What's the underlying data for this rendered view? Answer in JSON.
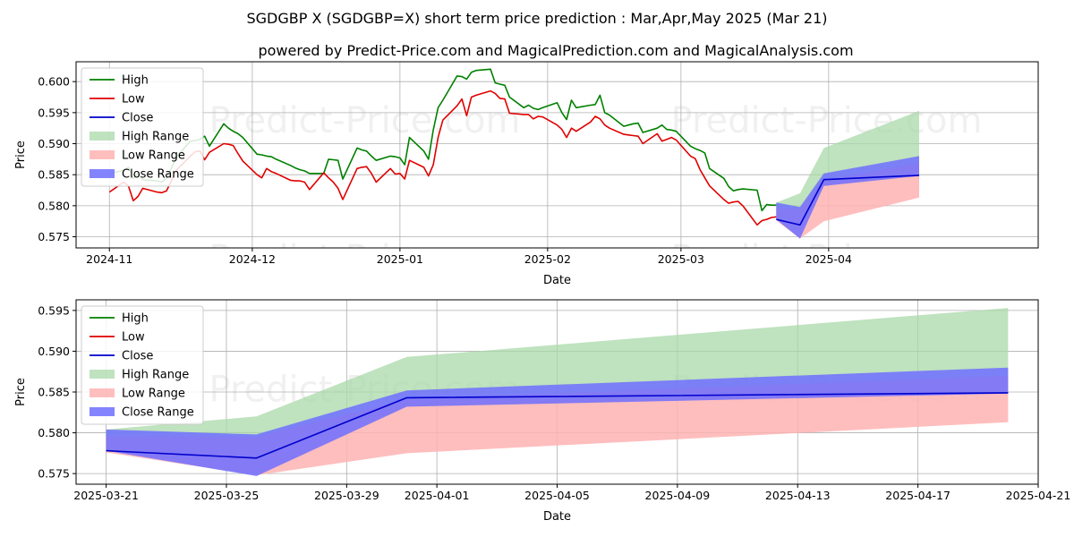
{
  "title": "SGDGBP X (SGDGBP=X) short term price prediction : Mar,Apr,May 2025 (Mar 21)",
  "subtitle": "powered by Predict-Price.com and MagicalPrediction.com and MagicalAnalysis.com",
  "watermark": "Predict-Price.com",
  "colors": {
    "high": "#008000",
    "low": "#e00000",
    "close": "#0000cc",
    "high_range": "#a9d8a9",
    "low_range": "#ffb3b3",
    "close_range": "#6f6fff",
    "grid": "#b0b0b0"
  },
  "chart_data": [
    {
      "type": "line",
      "xlabel": "Date",
      "ylabel": "Price",
      "x_type": "date",
      "xlim": [
        "2024-10-25",
        "2025-05-15"
      ],
      "ylim": [
        0.5732,
        0.6032
      ],
      "grid": true,
      "legend": "upper left",
      "xticks": [
        "2024-11-01",
        "2024-12-01",
        "2025-01-01",
        "2025-02-01",
        "2025-03-01",
        "2025-04-01"
      ],
      "xticklabels": [
        "2024-11",
        "2024-12",
        "2025-01",
        "2025-02",
        "2025-03",
        "2025-04"
      ],
      "yticks": [
        0.575,
        0.58,
        0.585,
        0.59,
        0.595,
        0.6
      ],
      "yticklabels": [
        "0.575",
        "0.580",
        "0.585",
        "0.590",
        "0.595",
        "0.600"
      ],
      "legend_entries": [
        "High",
        "Low",
        "Close",
        "High Range",
        "Low Range",
        "Close Range"
      ],
      "series": [
        {
          "name": "High",
          "x": [
            "2024-11-01",
            "2024-11-04",
            "2024-11-05",
            "2024-11-06",
            "2024-11-07",
            "2024-11-08",
            "2024-11-11",
            "2024-11-12",
            "2024-11-13",
            "2024-11-14",
            "2024-11-15",
            "2024-11-18",
            "2024-11-19",
            "2024-11-20",
            "2024-11-21",
            "2024-11-22",
            "2024-11-25",
            "2024-11-26",
            "2024-11-27",
            "2024-11-28",
            "2024-11-29",
            "2024-12-02",
            "2024-12-03",
            "2024-12-04",
            "2024-12-05",
            "2024-12-06",
            "2024-12-09",
            "2024-12-10",
            "2024-12-11",
            "2024-12-12",
            "2024-12-13",
            "2024-12-16",
            "2024-12-17",
            "2024-12-18",
            "2024-12-19",
            "2024-12-20",
            "2024-12-23",
            "2024-12-24",
            "2024-12-25",
            "2024-12-26",
            "2024-12-27",
            "2024-12-30",
            "2024-12-31",
            "2025-01-01",
            "2025-01-02",
            "2025-01-03",
            "2025-01-06",
            "2025-01-07",
            "2025-01-08",
            "2025-01-09",
            "2025-01-10",
            "2025-01-13",
            "2025-01-14",
            "2025-01-15",
            "2025-01-16",
            "2025-01-17",
            "2025-01-20",
            "2025-01-21",
            "2025-01-22",
            "2025-01-23",
            "2025-01-24",
            "2025-01-27",
            "2025-01-28",
            "2025-01-29",
            "2025-01-30",
            "2025-01-31",
            "2025-02-03",
            "2025-02-04",
            "2025-02-05",
            "2025-02-06",
            "2025-02-07",
            "2025-02-10",
            "2025-02-11",
            "2025-02-12",
            "2025-02-13",
            "2025-02-14",
            "2025-02-17",
            "2025-02-18",
            "2025-02-19",
            "2025-02-20",
            "2025-02-21",
            "2025-02-24",
            "2025-02-25",
            "2025-02-26",
            "2025-02-27",
            "2025-02-28",
            "2025-03-03",
            "2025-03-04",
            "2025-03-05",
            "2025-03-06",
            "2025-03-07",
            "2025-03-10",
            "2025-03-11",
            "2025-03-12",
            "2025-03-13",
            "2025-03-14",
            "2025-03-17",
            "2025-03-18",
            "2025-03-19",
            "2025-03-20",
            "2025-03-21"
          ],
          "values": [
            0.5852,
            0.5857,
            0.5862,
            0.5844,
            0.5852,
            0.5842,
            0.584,
            0.5838,
            0.5845,
            0.586,
            0.5878,
            0.5904,
            0.5905,
            0.5907,
            0.5912,
            0.5896,
            0.5932,
            0.5925,
            0.592,
            0.5916,
            0.591,
            0.5883,
            0.5882,
            0.588,
            0.5879,
            0.5875,
            0.5865,
            0.5861,
            0.5858,
            0.5856,
            0.5852,
            0.5852,
            0.5875,
            0.5874,
            0.5873,
            0.5843,
            0.5893,
            0.589,
            0.5888,
            0.588,
            0.5873,
            0.588,
            0.5879,
            0.5877,
            0.5866,
            0.591,
            0.5888,
            0.5875,
            0.5922,
            0.5958,
            0.597,
            0.6009,
            0.6008,
            0.6004,
            0.6015,
            0.6018,
            0.602,
            0.5998,
            0.5996,
            0.5994,
            0.5975,
            0.5958,
            0.5962,
            0.5957,
            0.5955,
            0.5958,
            0.5966,
            0.595,
            0.5939,
            0.597,
            0.5958,
            0.5962,
            0.5963,
            0.5978,
            0.595,
            0.5946,
            0.5928,
            0.593,
            0.5932,
            0.5933,
            0.5918,
            0.5925,
            0.593,
            0.5923,
            0.5922,
            0.592,
            0.5896,
            0.5892,
            0.5889,
            0.5885,
            0.586,
            0.5844,
            0.5831,
            0.5824,
            0.5826,
            0.5827,
            0.5825,
            0.5792,
            0.5802,
            0.5801,
            0.5801
          ]
        },
        {
          "name": "Low",
          "x": [
            "2024-11-01",
            "2024-11-04",
            "2024-11-05",
            "2024-11-06",
            "2024-11-07",
            "2024-11-08",
            "2024-11-11",
            "2024-11-12",
            "2024-11-13",
            "2024-11-14",
            "2024-11-15",
            "2024-11-18",
            "2024-11-19",
            "2024-11-20",
            "2024-11-21",
            "2024-11-22",
            "2024-11-25",
            "2024-11-26",
            "2024-11-27",
            "2024-11-28",
            "2024-11-29",
            "2024-12-02",
            "2024-12-03",
            "2024-12-04",
            "2024-12-05",
            "2024-12-06",
            "2024-12-09",
            "2024-12-10",
            "2024-12-11",
            "2024-12-12",
            "2024-12-13",
            "2024-12-16",
            "2024-12-17",
            "2024-12-18",
            "2024-12-19",
            "2024-12-20",
            "2024-12-23",
            "2024-12-24",
            "2024-12-25",
            "2024-12-26",
            "2024-12-27",
            "2024-12-30",
            "2024-12-31",
            "2025-01-01",
            "2025-01-02",
            "2025-01-03",
            "2025-01-06",
            "2025-01-07",
            "2025-01-08",
            "2025-01-09",
            "2025-01-10",
            "2025-01-13",
            "2025-01-14",
            "2025-01-15",
            "2025-01-16",
            "2025-01-17",
            "2025-01-20",
            "2025-01-21",
            "2025-01-22",
            "2025-01-23",
            "2025-01-24",
            "2025-01-27",
            "2025-01-28",
            "2025-01-29",
            "2025-01-30",
            "2025-01-31",
            "2025-02-03",
            "2025-02-04",
            "2025-02-05",
            "2025-02-06",
            "2025-02-07",
            "2025-02-10",
            "2025-02-11",
            "2025-02-12",
            "2025-02-13",
            "2025-02-14",
            "2025-02-17",
            "2025-02-18",
            "2025-02-19",
            "2025-02-20",
            "2025-02-21",
            "2025-02-24",
            "2025-02-25",
            "2025-02-26",
            "2025-02-27",
            "2025-02-28",
            "2025-03-03",
            "2025-03-04",
            "2025-03-05",
            "2025-03-06",
            "2025-03-07",
            "2025-03-10",
            "2025-03-11",
            "2025-03-12",
            "2025-03-13",
            "2025-03-14",
            "2025-03-17",
            "2025-03-18",
            "2025-03-19",
            "2025-03-20",
            "2025-03-21"
          ],
          "values": [
            0.5822,
            0.5838,
            0.5832,
            0.5808,
            0.5815,
            0.5828,
            0.5822,
            0.5821,
            0.5824,
            0.584,
            0.5857,
            0.588,
            0.5887,
            0.5888,
            0.5874,
            0.5886,
            0.59,
            0.5899,
            0.5897,
            0.5884,
            0.5872,
            0.585,
            0.5845,
            0.586,
            0.5855,
            0.5852,
            0.5841,
            0.584,
            0.584,
            0.5838,
            0.5826,
            0.5853,
            0.5845,
            0.5838,
            0.5828,
            0.581,
            0.586,
            0.5862,
            0.5863,
            0.5852,
            0.5838,
            0.586,
            0.5851,
            0.5852,
            0.5843,
            0.5873,
            0.5862,
            0.5848,
            0.5866,
            0.591,
            0.5938,
            0.5961,
            0.5972,
            0.5945,
            0.5975,
            0.5978,
            0.5985,
            0.5981,
            0.5973,
            0.5972,
            0.5949,
            0.5947,
            0.5947,
            0.594,
            0.5944,
            0.5943,
            0.593,
            0.5923,
            0.591,
            0.5925,
            0.592,
            0.5935,
            0.5944,
            0.594,
            0.593,
            0.5925,
            0.5915,
            0.5914,
            0.5913,
            0.5912,
            0.59,
            0.5916,
            0.5904,
            0.5907,
            0.591,
            0.5906,
            0.588,
            0.5876,
            0.5858,
            0.5845,
            0.5832,
            0.581,
            0.5804,
            0.5806,
            0.5807,
            0.58,
            0.5769,
            0.5776,
            0.5778,
            0.5781,
            0.5782
          ]
        },
        {
          "name": "Close",
          "x": [
            "2025-03-21",
            "2025-03-26",
            "2025-03-31",
            "2025-04-20"
          ],
          "values": [
            0.5778,
            0.5769,
            0.5842,
            0.5849
          ]
        }
      ],
      "ranges": [
        {
          "name": "High Range",
          "x": [
            "2025-03-21",
            "2025-03-26",
            "2025-03-31",
            "2025-04-20"
          ],
          "upper": [
            0.5805,
            0.582,
            0.5893,
            0.5953
          ],
          "lower": [
            0.5778,
            0.578,
            0.5832,
            0.585
          ]
        },
        {
          "name": "Low Range",
          "x": [
            "2025-03-21",
            "2025-03-26",
            "2025-03-31",
            "2025-04-20"
          ],
          "upper": [
            0.5795,
            0.5795,
            0.584,
            0.587
          ],
          "lower": [
            0.5776,
            0.5747,
            0.5775,
            0.5813
          ]
        },
        {
          "name": "Close Range",
          "x": [
            "2025-03-21",
            "2025-03-26",
            "2025-03-31",
            "2025-04-20"
          ],
          "upper": [
            0.5805,
            0.5798,
            0.5852,
            0.588
          ],
          "lower": [
            0.5778,
            0.5747,
            0.5832,
            0.5848
          ]
        }
      ]
    },
    {
      "type": "line",
      "xlabel": "Date",
      "ylabel": "Price",
      "x_type": "date",
      "xlim": [
        "2025-03-20",
        "2025-04-21"
      ],
      "ylim": [
        0.5737,
        0.5963
      ],
      "grid": true,
      "legend": "upper left",
      "xticks": [
        "2025-03-21",
        "2025-03-25",
        "2025-03-29",
        "2025-04-01",
        "2025-04-05",
        "2025-04-09",
        "2025-04-13",
        "2025-04-17",
        "2025-04-21"
      ],
      "xticklabels": [
        "2025-03-21",
        "2025-03-25",
        "2025-03-29",
        "2025-04-01",
        "2025-04-05",
        "2025-04-09",
        "2025-04-13",
        "2025-04-17",
        "2025-04-21"
      ],
      "yticks": [
        0.575,
        0.58,
        0.585,
        0.59,
        0.595
      ],
      "yticklabels": [
        "0.575",
        "0.580",
        "0.585",
        "0.590",
        "0.595"
      ],
      "legend_entries": [
        "High",
        "Low",
        "Close",
        "High Range",
        "Low Range",
        "Close Range"
      ],
      "series": [
        {
          "name": "Close",
          "x": [
            "2025-03-21",
            "2025-03-26",
            "2025-03-31",
            "2025-04-20"
          ],
          "values": [
            0.5778,
            0.5769,
            0.5843,
            0.5849
          ]
        }
      ],
      "ranges": [
        {
          "name": "High Range",
          "x": [
            "2025-03-21",
            "2025-03-26",
            "2025-03-31",
            "2025-04-20"
          ],
          "upper": [
            0.5804,
            0.582,
            0.5893,
            0.5953
          ],
          "lower": [
            0.5778,
            0.578,
            0.5832,
            0.585
          ]
        },
        {
          "name": "Low Range",
          "x": [
            "2025-03-21",
            "2025-03-26",
            "2025-03-31",
            "2025-04-20"
          ],
          "upper": [
            0.5796,
            0.5795,
            0.5841,
            0.587
          ],
          "lower": [
            0.5776,
            0.5748,
            0.5775,
            0.5813
          ]
        },
        {
          "name": "Close Range",
          "x": [
            "2025-03-21",
            "2025-03-26",
            "2025-03-31",
            "2025-04-20"
          ],
          "upper": [
            0.5804,
            0.5798,
            0.5852,
            0.588
          ],
          "lower": [
            0.5778,
            0.5747,
            0.5832,
            0.5848
          ]
        }
      ]
    }
  ]
}
